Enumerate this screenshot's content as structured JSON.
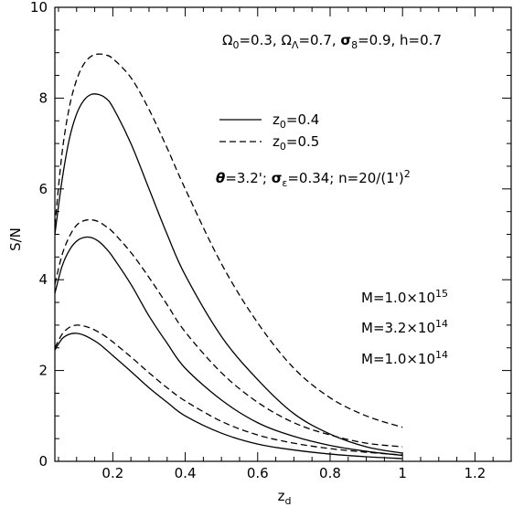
{
  "chart_data": {
    "type": "line",
    "title": "",
    "xlabel": "z",
    "xlabel_sub": "d",
    "ylabel": "S/N",
    "xlim": [
      0.04,
      1.3
    ],
    "ylim": [
      0,
      10
    ],
    "x_ticks": [
      "0.2",
      "0.4",
      "0.6",
      "0.8",
      "1",
      "1.2"
    ],
    "y_ticks": [
      "0",
      "2",
      "4",
      "6",
      "8",
      "10"
    ],
    "cosmology_text": "Ω₀=0.3, Ω_Λ=0.7, σ₈=0.9, h=0.7",
    "cosmology_parts": [
      "0",
      "=0.3, ",
      "Λ",
      "=0.7, ",
      "8",
      "=0.9, h=0.7"
    ],
    "params_parts": [
      "=3.2'; ",
      "ε",
      "=0.34; n=20/(1')",
      "2"
    ],
    "legend": [
      {
        "prefix": "z",
        "sub": "0",
        "rest": "=0.4",
        "style": "solid"
      },
      {
        "prefix": "z",
        "sub": "0",
        "rest": "=0.5",
        "style": "dashed"
      }
    ],
    "mass_labels": [
      {
        "base": "M=1.0×10",
        "exp": "15"
      },
      {
        "base": "M=3.2×10",
        "exp": "14"
      },
      {
        "base": "M=1.0×10",
        "exp": "14"
      }
    ],
    "series": [
      {
        "mass": "1.0e15",
        "z0": "0.4",
        "style": "solid",
        "x": [
          0.04,
          0.06,
          0.08,
          0.1,
          0.12,
          0.14,
          0.16,
          0.18,
          0.2,
          0.25,
          0.3,
          0.35,
          0.4,
          0.5,
          0.6,
          0.7,
          0.8,
          0.9,
          1.0
        ],
        "y": [
          5.0,
          6.2,
          7.1,
          7.65,
          7.95,
          8.08,
          8.08,
          8.0,
          7.8,
          7.0,
          6.0,
          5.0,
          4.1,
          2.75,
          1.8,
          1.05,
          0.6,
          0.32,
          0.18
        ]
      },
      {
        "mass": "1.0e15",
        "z0": "0.5",
        "style": "dashed",
        "x": [
          0.04,
          0.06,
          0.08,
          0.1,
          0.12,
          0.14,
          0.16,
          0.18,
          0.2,
          0.25,
          0.3,
          0.35,
          0.4,
          0.5,
          0.6,
          0.7,
          0.8,
          0.9,
          1.0
        ],
        "y": [
          5.2,
          6.8,
          7.8,
          8.4,
          8.75,
          8.92,
          8.97,
          8.95,
          8.87,
          8.45,
          7.75,
          6.9,
          6.0,
          4.35,
          3.05,
          2.05,
          1.4,
          1.0,
          0.75
        ]
      },
      {
        "mass": "3.2e14",
        "z0": "0.4",
        "style": "solid",
        "x": [
          0.04,
          0.06,
          0.08,
          0.1,
          0.12,
          0.14,
          0.16,
          0.18,
          0.2,
          0.25,
          0.3,
          0.35,
          0.4,
          0.5,
          0.6,
          0.7,
          0.8,
          0.9,
          1.0
        ],
        "y": [
          3.7,
          4.3,
          4.65,
          4.85,
          4.93,
          4.93,
          4.85,
          4.7,
          4.5,
          3.9,
          3.2,
          2.6,
          2.05,
          1.35,
          0.85,
          0.55,
          0.35,
          0.22,
          0.13
        ]
      },
      {
        "mass": "3.2e14",
        "z0": "0.5",
        "style": "dashed",
        "x": [
          0.04,
          0.06,
          0.08,
          0.1,
          0.12,
          0.14,
          0.16,
          0.18,
          0.2,
          0.25,
          0.3,
          0.35,
          0.4,
          0.5,
          0.6,
          0.7,
          0.8,
          0.9,
          1.0
        ],
        "y": [
          3.9,
          4.55,
          4.95,
          5.2,
          5.3,
          5.32,
          5.28,
          5.18,
          5.05,
          4.6,
          4.05,
          3.45,
          2.85,
          1.95,
          1.3,
          0.85,
          0.58,
          0.4,
          0.32
        ]
      },
      {
        "mass": "1.0e14",
        "z0": "0.4",
        "style": "solid",
        "x": [
          0.04,
          0.06,
          0.08,
          0.1,
          0.12,
          0.14,
          0.16,
          0.18,
          0.2,
          0.25,
          0.3,
          0.35,
          0.4,
          0.5,
          0.6,
          0.7,
          0.8,
          0.9,
          1.0
        ],
        "y": [
          2.45,
          2.7,
          2.8,
          2.82,
          2.78,
          2.7,
          2.6,
          2.47,
          2.33,
          1.98,
          1.62,
          1.3,
          1.0,
          0.62,
          0.38,
          0.25,
          0.16,
          0.1,
          0.06
        ]
      },
      {
        "mass": "1.0e14",
        "z0": "0.5",
        "style": "dashed",
        "x": [
          0.04,
          0.06,
          0.08,
          0.1,
          0.12,
          0.14,
          0.16,
          0.18,
          0.2,
          0.25,
          0.3,
          0.35,
          0.4,
          0.5,
          0.6,
          0.7,
          0.8,
          0.9,
          1.0
        ],
        "y": [
          2.5,
          2.8,
          2.95,
          3.0,
          2.98,
          2.93,
          2.85,
          2.75,
          2.63,
          2.3,
          1.95,
          1.62,
          1.33,
          0.88,
          0.58,
          0.4,
          0.28,
          0.2,
          0.14
        ]
      }
    ]
  }
}
